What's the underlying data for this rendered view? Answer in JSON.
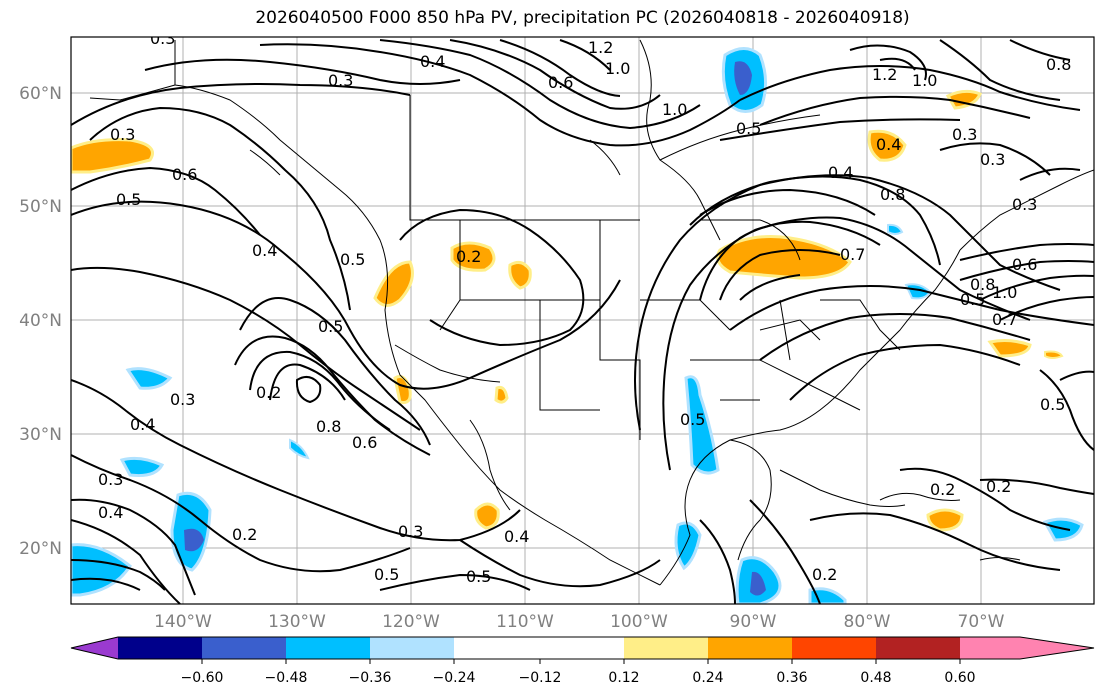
{
  "title": "2026040500 F000 850 hPa PV, precipitation PC (2026040818 - 2026040918)",
  "map": {
    "lon_ticks": [
      "140°W",
      "130°W",
      "120°W",
      "110°W",
      "100°W",
      "90°W",
      "80°W",
      "70°W"
    ],
    "lat_ticks": [
      "60°N",
      "50°N",
      "40°N",
      "30°N",
      "20°N"
    ],
    "contour_labels": [
      "0.3",
      "0.4",
      "0.3",
      "1.2",
      "1.0",
      "0.6",
      "1.0",
      "0.5",
      "1.2",
      "1.0",
      "0.8",
      "0.3",
      "0.3",
      "0.5",
      "0.6",
      "0.4",
      "0.5",
      "0.2",
      "0.4",
      "0.8",
      "0.5",
      "0.8",
      "0.2",
      "0.6",
      "0.5",
      "0.7",
      "0.3",
      "0.5",
      "0.8",
      "0.6",
      "0.3",
      "0.4",
      "0.5",
      "0.3",
      "0.3",
      "0.5",
      "0.5",
      "0.4",
      "0.2",
      "0.2",
      "0.2",
      "0.4",
      "0.2",
      "0.7",
      "0.4",
      "0.3",
      "1.0"
    ]
  },
  "colorbar": {
    "ticks": [
      "−0.60",
      "−0.48",
      "−0.36",
      "−0.24",
      "−0.12",
      "0.12",
      "0.24",
      "0.36",
      "0.48",
      "0.60"
    ],
    "colors": [
      "#9a3ad0",
      "#00008b",
      "#3a5fcd",
      "#00bfff",
      "#b0e2ff",
      "#ffffff",
      "#ffee88",
      "#ffa500",
      "#ff4500",
      "#b22222",
      "#ff83b0"
    ]
  }
}
